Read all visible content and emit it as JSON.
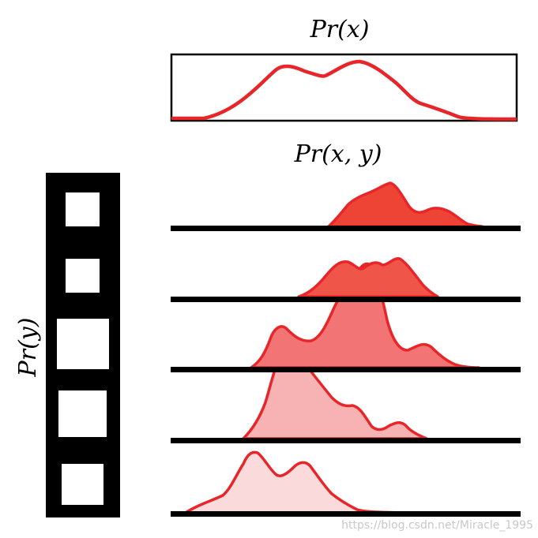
{
  "labels": {
    "pr_x": "Pr(x)",
    "pr_xy": "Pr(x, y)",
    "pr_y": "Pr(y)"
  },
  "watermark": "https://blog.csdn.net/Miracle_1995",
  "colors": {
    "curve_stroke": "#e8262a",
    "fills": [
      "#ee4436",
      "#ef5548",
      "#f27474",
      "#f7b2b4",
      "#fadadb"
    ],
    "bar": "#000000",
    "frame": "#000000"
  },
  "structure": {
    "marginal_x": "single curve in a box",
    "joint_rows": 5,
    "marginal_y": "vertical film strip with 5 windows of varying size"
  }
}
